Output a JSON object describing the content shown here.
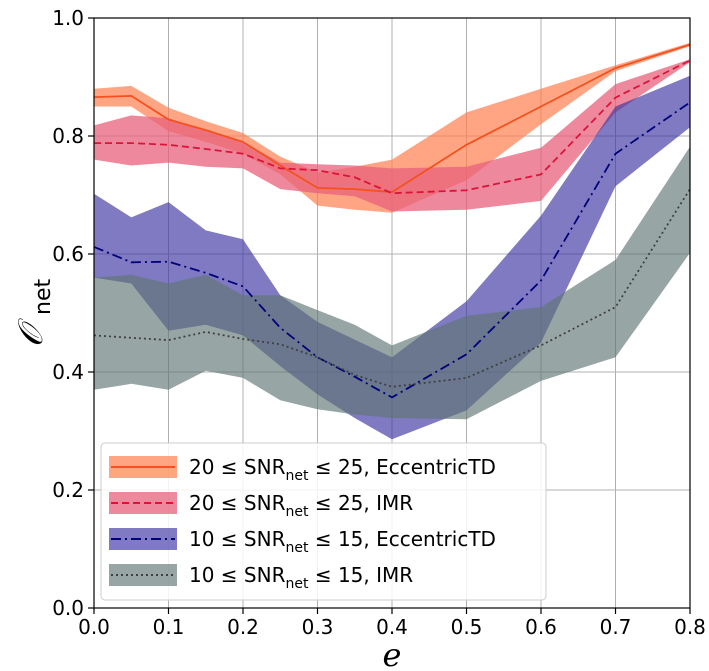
{
  "chart_data": {
    "type": "line",
    "xlabel": "e",
    "ylabel": "𝒪",
    "ylabel_sub": "net",
    "xlim": [
      0.0,
      0.8
    ],
    "ylim": [
      0.0,
      1.0
    ],
    "xticks": [
      "0.0",
      "0.1",
      "0.2",
      "0.3",
      "0.4",
      "0.5",
      "0.6",
      "0.7",
      "0.8"
    ],
    "yticks": [
      "0.0",
      "0.2",
      "0.4",
      "0.6",
      "0.8",
      "1.0"
    ],
    "grid": true,
    "legend_position": "lower-left",
    "series": [
      {
        "legend": {
          "pre": "20 ≤ SNR",
          "sub": "net",
          "post": " ≤ 25, EccentricTD"
        },
        "color": "#f4511e",
        "band_color": "#ff7f50",
        "band_opacity": 0.7,
        "line_style": "solid",
        "x": [
          0.0,
          0.05,
          0.1,
          0.15,
          0.2,
          0.25,
          0.3,
          0.35,
          0.4,
          0.5,
          0.6,
          0.7,
          0.8
        ],
        "y": [
          0.866,
          0.868,
          0.828,
          0.81,
          0.79,
          0.75,
          0.712,
          0.71,
          0.705,
          0.785,
          0.85,
          0.915,
          0.955
        ],
        "upper": [
          0.88,
          0.885,
          0.848,
          0.825,
          0.805,
          0.765,
          0.738,
          0.748,
          0.76,
          0.84,
          0.88,
          0.92,
          0.958
        ],
        "lower": [
          0.85,
          0.85,
          0.808,
          0.79,
          0.77,
          0.735,
          0.682,
          0.675,
          0.67,
          0.725,
          0.82,
          0.91,
          0.952
        ]
      },
      {
        "legend": {
          "pre": "20 ≤ SNR",
          "sub": "net",
          "post": " ≤ 25, IMR"
        },
        "color": "#dc143c",
        "band_color": "#e8627c",
        "band_opacity": 0.75,
        "line_style": "dashed",
        "x": [
          0.0,
          0.05,
          0.1,
          0.15,
          0.2,
          0.25,
          0.3,
          0.35,
          0.4,
          0.5,
          0.6,
          0.7,
          0.8
        ],
        "y": [
          0.788,
          0.788,
          0.785,
          0.778,
          0.77,
          0.745,
          0.742,
          0.73,
          0.703,
          0.708,
          0.735,
          0.865,
          0.928
        ],
        "upper": [
          0.818,
          0.835,
          0.83,
          0.81,
          0.79,
          0.755,
          0.752,
          0.75,
          0.745,
          0.748,
          0.78,
          0.888,
          0.93
        ],
        "lower": [
          0.76,
          0.75,
          0.755,
          0.748,
          0.745,
          0.71,
          0.703,
          0.698,
          0.672,
          0.675,
          0.69,
          0.84,
          0.925
        ]
      },
      {
        "legend": {
          "pre": "10 ≤ SNR",
          "sub": "net",
          "post": " ≤ 15, EccentricTD"
        },
        "color": "#00007a",
        "band_color": "#3a33a0",
        "band_opacity": 0.65,
        "line_style": "dashdot",
        "x": [
          0.0,
          0.05,
          0.1,
          0.15,
          0.2,
          0.25,
          0.3,
          0.35,
          0.4,
          0.5,
          0.6,
          0.7,
          0.8
        ],
        "y": [
          0.612,
          0.586,
          0.587,
          0.568,
          0.545,
          0.475,
          0.425,
          0.392,
          0.357,
          0.43,
          0.555,
          0.77,
          0.857
        ],
        "upper": [
          0.702,
          0.662,
          0.688,
          0.64,
          0.625,
          0.53,
          0.485,
          0.455,
          0.425,
          0.52,
          0.665,
          0.85,
          0.902
        ],
        "lower": [
          0.56,
          0.55,
          0.47,
          0.48,
          0.462,
          0.41,
          0.362,
          0.322,
          0.286,
          0.335,
          0.45,
          0.715,
          0.815
        ]
      },
      {
        "legend": {
          "pre": "10 ≤ SNR",
          "sub": "net",
          "post": " ≤ 15, IMR"
        },
        "color": "#404040",
        "band_color": "#5f7775",
        "band_opacity": 0.65,
        "line_style": "dotted",
        "x": [
          0.0,
          0.05,
          0.1,
          0.15,
          0.2,
          0.25,
          0.3,
          0.35,
          0.4,
          0.5,
          0.6,
          0.7,
          0.8
        ],
        "y": [
          0.462,
          0.458,
          0.454,
          0.468,
          0.456,
          0.447,
          0.425,
          0.395,
          0.375,
          0.39,
          0.445,
          0.51,
          0.71
        ],
        "upper": [
          0.56,
          0.565,
          0.55,
          0.565,
          0.53,
          0.53,
          0.505,
          0.48,
          0.445,
          0.495,
          0.51,
          0.59,
          0.782
        ],
        "lower": [
          0.37,
          0.38,
          0.37,
          0.402,
          0.39,
          0.352,
          0.337,
          0.328,
          0.322,
          0.32,
          0.385,
          0.425,
          0.602
        ]
      }
    ]
  }
}
